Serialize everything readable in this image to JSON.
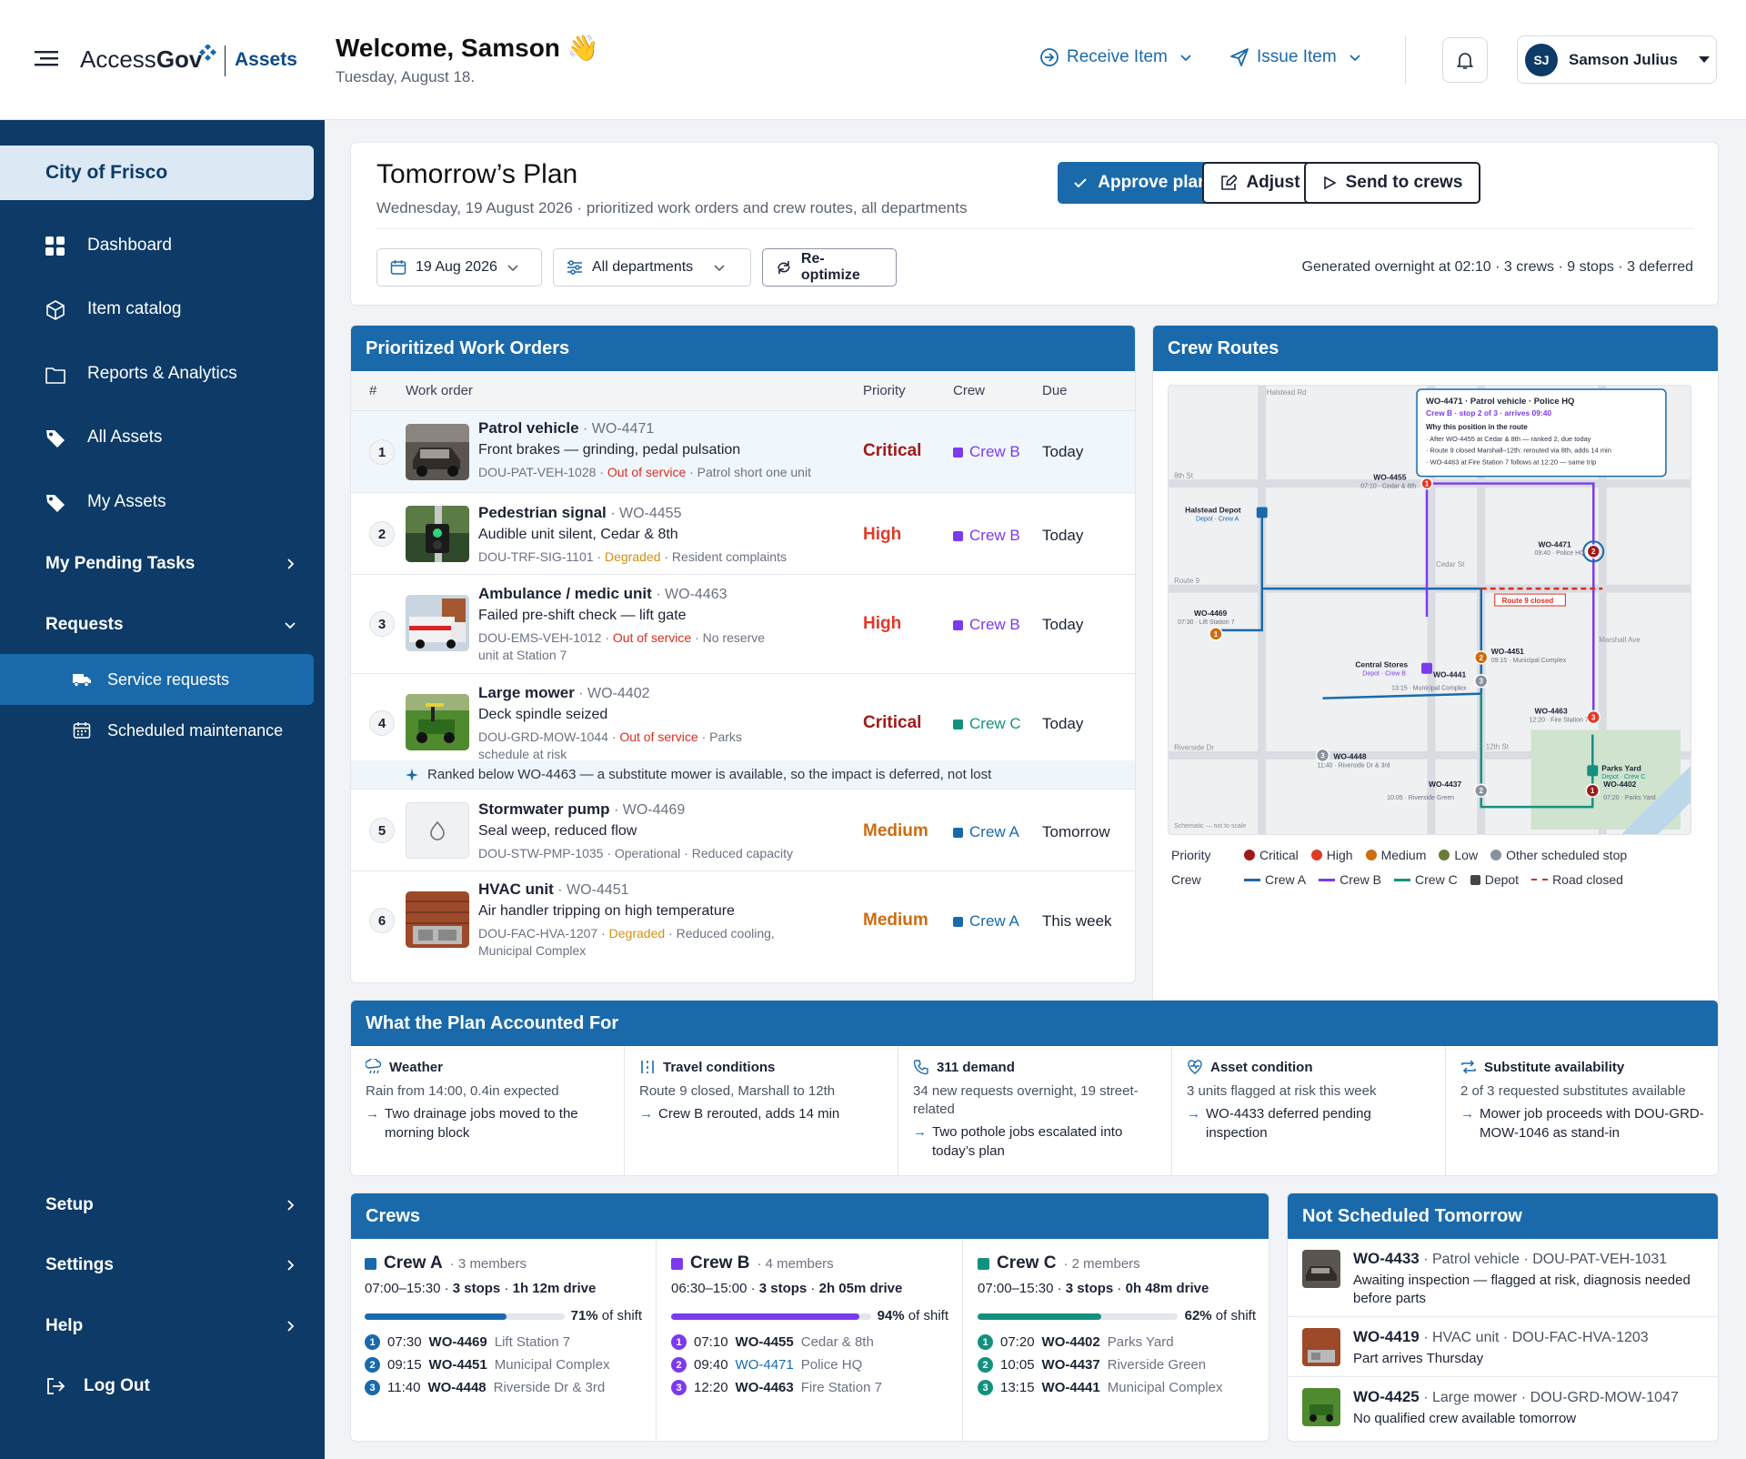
{
  "app": {
    "logo_text_a": "Access",
    "logo_text_b": "Gov",
    "product": "Assets"
  },
  "header": {
    "welcome": "Welcome, Samson 👋",
    "date": "Tuesday, August 18.",
    "receive_label": "Receive Item",
    "issue_label": "Issue Item",
    "user_initials": "SJ",
    "user_name": "Samson Julius"
  },
  "sidebar": {
    "org": "City of Frisco",
    "items": [
      {
        "label": "Dashboard",
        "icon": "grid-icon"
      },
      {
        "label": "Item catalog",
        "icon": "cube-icon"
      },
      {
        "label": "Reports & Analytics",
        "icon": "folder-icon"
      },
      {
        "label": "All Assets",
        "icon": "tag-icon"
      },
      {
        "label": "My Assets",
        "icon": "tag-icon"
      }
    ],
    "pending": "My Pending Tasks",
    "requests": "Requests",
    "sub": [
      {
        "label": "Service requests",
        "icon": "truck-icon"
      },
      {
        "label": "Scheduled maintenance",
        "icon": "calendar-icon"
      }
    ],
    "setup": "Setup",
    "settings": "Settings",
    "help": "Help",
    "logout": "Log Out"
  },
  "plan": {
    "title": "Tomorrow’s Plan",
    "subtitle": "Wednesday, 19 August 2026 · prioritized work orders and crew routes, all departments",
    "approve": "Approve plan",
    "adjust": "Adjust",
    "send": "Send to crews",
    "date_filter": "19 Aug 2026",
    "dept_filter": "All departments",
    "reoptimize": "Re-optimize",
    "generated": "Generated overnight at 02:10 · 3 crews · 9 stops · 3 deferred"
  },
  "work_orders": {
    "title": "Prioritized Work Orders",
    "columns": {
      "num": "#",
      "wo": "Work order",
      "priority": "Priority",
      "crew": "Crew",
      "due": "Due"
    },
    "rows": [
      {
        "n": "1",
        "name": "Patrol vehicle",
        "id": " · WO-4471",
        "desc": "Front brakes — grinding, pedal pulsation",
        "asset": "DOU-PAT-VEH-1028 · ",
        "status": "Out of service",
        "note": " · Patrol short one unit",
        "priority": "Critical",
        "crew": "Crew B",
        "due": "Today"
      },
      {
        "n": "2",
        "name": "Pedestrian signal",
        "id": " · WO-4455",
        "desc": "Audible unit silent, Cedar & 8th",
        "asset": "DOU-TRF-SIG-1101 · ",
        "status": "Degraded",
        "note": " · Resident complaints",
        "priority": "High",
        "crew": "Crew B",
        "due": "Today"
      },
      {
        "n": "3",
        "name": "Ambulance / medic unit",
        "id": " · WO-4463",
        "desc": "Failed pre-shift check — lift gate",
        "asset": "DOU-EMS-VEH-1012 · ",
        "status": "Out of service",
        "note": " · No reserve unit at Station 7",
        "priority": "High",
        "crew": "Crew B",
        "due": "Today"
      },
      {
        "n": "4",
        "name": "Large mower",
        "id": " · WO-4402",
        "desc": "Deck spindle seized",
        "asset": "DOU-GRD-MOW-1044 · ",
        "status": "Out of service",
        "note": " · Parks schedule at risk",
        "priority": "Critical",
        "crew": "Crew C",
        "due": "Today"
      },
      {
        "n": "5",
        "name": "Stormwater pump",
        "id": " · WO-4469",
        "desc": "Seal weep, reduced flow",
        "asset": "DOU-STW-PMP-1035 · ",
        "status": "Operational",
        "note": " · Reduced capacity",
        "priority": "Medium",
        "crew": "Crew A",
        "due": "Tomorrow"
      },
      {
        "n": "6",
        "name": "HVAC unit",
        "id": " · WO-4451",
        "desc": "Air handler tripping on high temperature",
        "asset": "DOU-FAC-HVA-1207 · ",
        "status": "Degraded",
        "note": " · Reduced cooling, Municipal Complex",
        "priority": "Medium",
        "crew": "Crew A",
        "due": "This week"
      }
    ],
    "rank_note": "Ranked below WO-4463 — a substitute mower is available, so the impact is deferred, not lost"
  },
  "routes": {
    "title": "Crew Routes",
    "popup_title": "WO-4471 · Patrol vehicle · Police HQ",
    "popup_sub": "Crew B · stop 2 of 3 · arrives 09:40",
    "popup_why": "Why this position in the route",
    "popup_l1": "· After WO-4455 at Cedar & 8th — ranked 2, due today",
    "popup_l2": "· Route 9 closed Marshall–12th: rerouted via 8th, adds 14 min",
    "popup_l3": "· WO-4463 at Fire Station 7 follows at 12:20 — same trip",
    "streets": {
      "halstead": "Halstead Rd",
      "eighth": "8th St",
      "route9": "Route 9",
      "cedar": "Cedar St",
      "marshall": "Marshall Ave",
      "riverside": "Riverside Dr",
      "twelfth": "12th St"
    },
    "closed": "Route 9 closed",
    "schematic": "Schematic — not to scale",
    "pins": {
      "wo4455": "WO-4455",
      "wo4455s": "07:10 · Cedar & 8th",
      "wo4471": "WO-4471",
      "wo4471s": "09:40 · Police HQ",
      "wo4469": "WO-4469",
      "wo4469s": "07:30 · Lift Station 7",
      "wo4451": "WO-4451",
      "wo4451s": "09:15 · Municipal Complex",
      "wo4441": "WO-4441",
      "wo4441s": "13:15 · Municipal Complex",
      "wo4463": "WO-4463",
      "wo4463s": "12:20 · Fire Station 7",
      "wo4448": "WO-4448",
      "wo4448s": "11:40 · Riverside Dr & 3rd",
      "wo4437": "WO-4437",
      "wo4437s": "10:05 · Riverside Green",
      "wo4402": "WO-4402",
      "wo4402s": "07:20 · Parks Yard"
    },
    "depots": {
      "halstead": "Halstead Depot",
      "halstead_s": "Depot · Crew A",
      "central": "Central Stores",
      "central_s": "Depot · Crew B",
      "parks": "Parks Yard",
      "parks_s": "Depot · Crew C"
    },
    "legend_priority": "Priority",
    "legend_crew": "Crew",
    "legend": {
      "critical": "Critical",
      "high": "High",
      "medium": "Medium",
      "low": "Low",
      "other": "Other scheduled stop",
      "crewa": "Crew A",
      "crewb": "Crew B",
      "crewc": "Crew C",
      "depot": "Depot",
      "closed": "Road closed"
    }
  },
  "accounted": {
    "title": "What the Plan Accounted For",
    "cols": [
      {
        "t": "Weather",
        "s": "Rain from 14:00, 0.4in expected",
        "r": "Two drainage jobs moved to the morning block",
        "icon": "cloud-rain-icon"
      },
      {
        "t": "Travel conditions",
        "s": "Route 9 closed, Marshall to 12th",
        "r": "Crew B rerouted, adds 14 min",
        "icon": "road-icon"
      },
      {
        "t": "311 demand",
        "s": "34 new requests overnight, 19 street-related",
        "r": "Two pothole jobs escalated into today’s plan",
        "icon": "phone-icon"
      },
      {
        "t": "Asset condition",
        "s": "3 units flagged at risk this week",
        "r": "WO-4433 deferred pending inspection",
        "icon": "heart-pulse-icon"
      },
      {
        "t": "Substitute availability",
        "s": "2 of 3 requested substitutes available",
        "r": "Mower job proceeds with DOU-GRD-MOW-1046 as stand-in",
        "icon": "swap-icon"
      }
    ]
  },
  "crews": {
    "title": "Crews",
    "list": [
      {
        "name": "Crew A",
        "members": " · 3 members",
        "hours": "07:00–15:30 · ",
        "stops": "3 stops",
        "sep": " · ",
        "drive": "1h 12m drive",
        "pct": "71%",
        "pct_label": " of shift",
        "fill": 0.71,
        "color": "#1a6aab",
        "stops_list": [
          {
            "n": "1",
            "time": "07:30",
            "wo": "WO-4469",
            "loc": "Lift Station 7"
          },
          {
            "n": "2",
            "time": "09:15",
            "wo": "WO-4451",
            "loc": "Municipal Complex"
          },
          {
            "n": "3",
            "time": "11:40",
            "wo": "WO-4448",
            "loc": "Riverside Dr & 3rd"
          }
        ]
      },
      {
        "name": "Crew B",
        "members": " · 4 members",
        "hours": "06:30–15:00 · ",
        "stops": "3 stops",
        "sep": " · ",
        "drive": "2h 05m drive",
        "pct": "94%",
        "pct_label": " of shift",
        "fill": 0.94,
        "color": "#7c3aed",
        "stops_list": [
          {
            "n": "1",
            "time": "07:10",
            "wo": "WO-4455",
            "loc": "Cedar & 8th"
          },
          {
            "n": "2",
            "time": "09:40",
            "wo": "WO-4471",
            "loc": "Police HQ"
          },
          {
            "n": "3",
            "time": "12:20",
            "wo": "WO-4463",
            "loc": "Fire Station 7"
          }
        ]
      },
      {
        "name": "Crew C",
        "members": " · 2 members",
        "hours": "07:00–15:30 · ",
        "stops": "3 stops",
        "sep": " · ",
        "drive": "0h 48m drive",
        "pct": "62%",
        "pct_label": " of shift",
        "fill": 0.62,
        "color": "#14917e",
        "stops_list": [
          {
            "n": "1",
            "time": "07:20",
            "wo": "WO-4402",
            "loc": "Parks Yard"
          },
          {
            "n": "2",
            "time": "10:05",
            "wo": "WO-4437",
            "loc": "Riverside Green"
          },
          {
            "n": "3",
            "time": "13:15",
            "wo": "WO-4441",
            "loc": "Municipal Complex"
          }
        ]
      }
    ]
  },
  "not_scheduled": {
    "title": "Not Scheduled Tomorrow",
    "rows": [
      {
        "wo": "WO-4433",
        "meta": " · Patrol vehicle · DOU-PAT-VEH-1031",
        "desc": "Awaiting inspection — flagged at risk, diagnosis needed before parts"
      },
      {
        "wo": "WO-4419",
        "meta": " · HVAC unit · DOU-FAC-HVA-1203",
        "desc": "Part arrives Thursday"
      },
      {
        "wo": "WO-4425",
        "meta": " · Large mower · DOU-GRD-MOW-1047",
        "desc": "No qualified crew available tomorrow"
      }
    ]
  },
  "colors": {
    "primary": "#1a6aab",
    "sidebar": "#0d3a66",
    "critical": "#a01a1a",
    "high": "#e03a2a",
    "medium": "#cc6d10",
    "crew_a": "#1a6aab",
    "crew_b": "#7c3aed",
    "crew_c": "#14917e"
  }
}
